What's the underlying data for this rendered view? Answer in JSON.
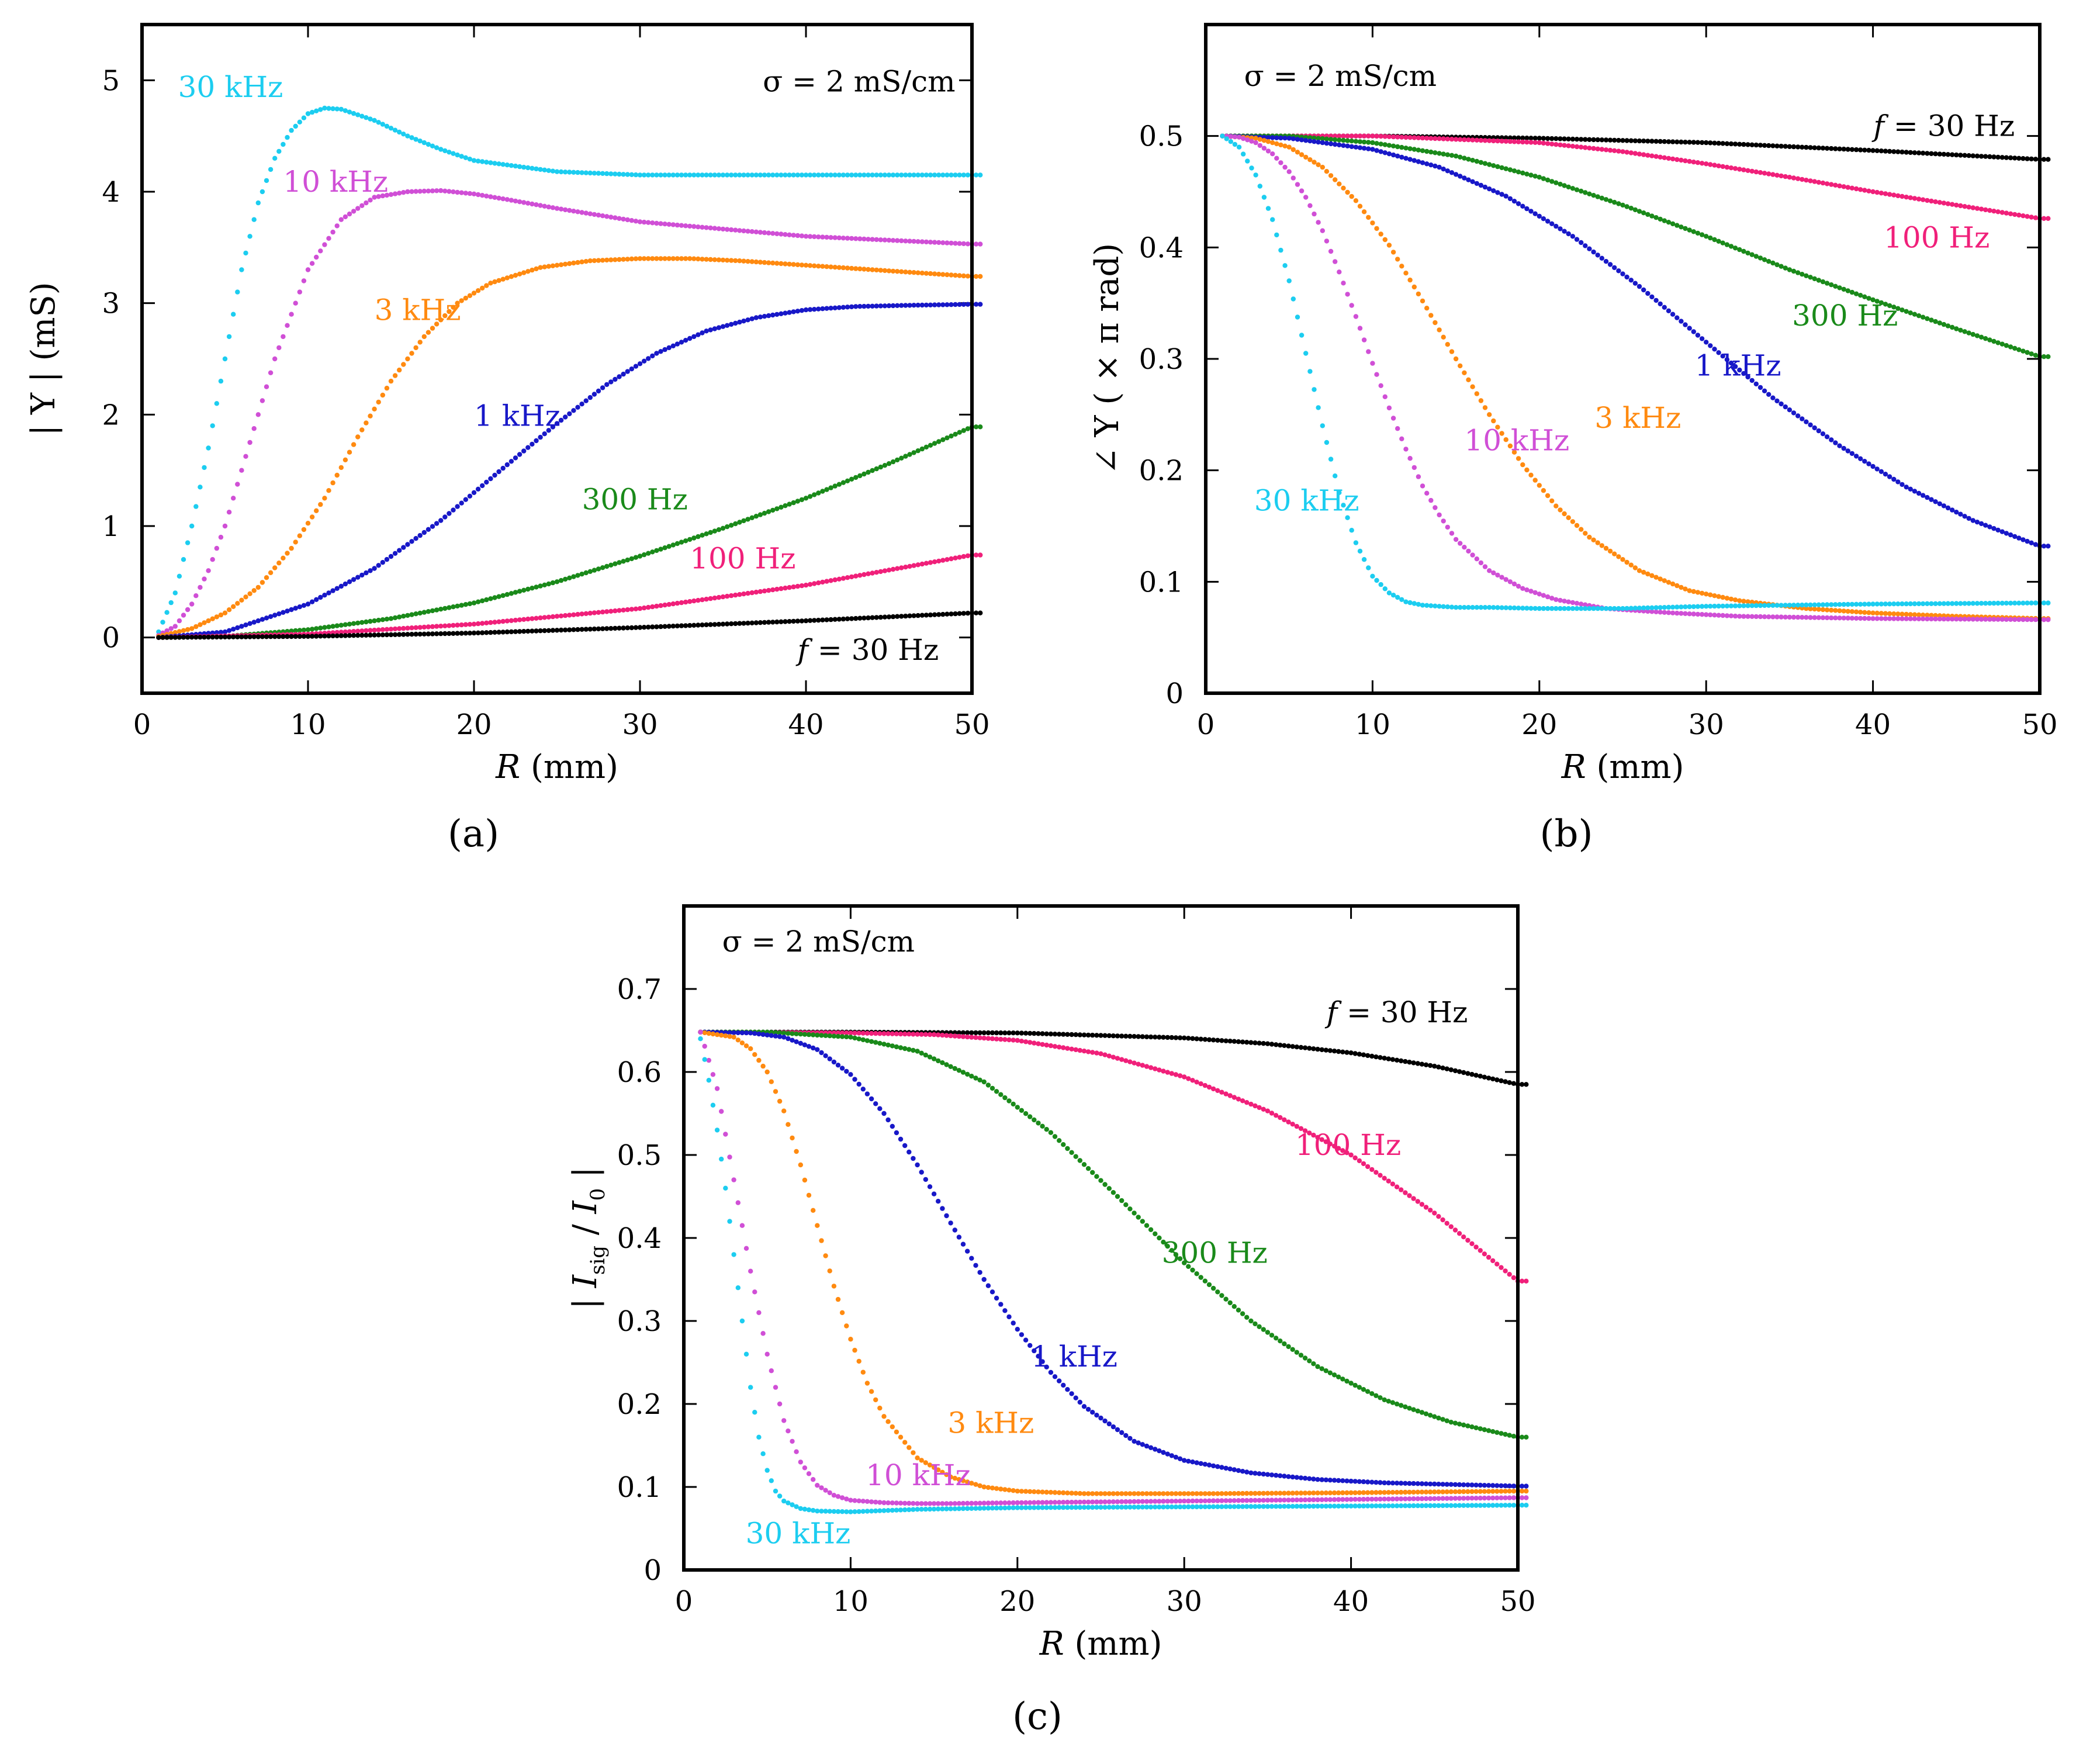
{
  "chart_data": [
    {
      "id": "a",
      "type": "scatter",
      "panel_label": "(a)",
      "xlabel": "R (mm)",
      "ylabel": "| Y | (mS)",
      "xlim": [
        0,
        50
      ],
      "ylim": [
        -0.5,
        5.5
      ],
      "xticks": [
        0,
        10,
        20,
        30,
        40,
        50
      ],
      "yticks": [
        0,
        1,
        2,
        3,
        4,
        5
      ],
      "annotation": "σ = 2 mS/cm",
      "series": [
        {
          "name": "30 kHz",
          "label": "30 kHz",
          "color": "#1ccdf0",
          "x": [
            1,
            2,
            3,
            4,
            5,
            6,
            7,
            8,
            9,
            10,
            11,
            12,
            14,
            16,
            18,
            20,
            25,
            30,
            40,
            50
          ],
          "y": [
            0.05,
            0.4,
            1.0,
            1.7,
            2.5,
            3.3,
            3.9,
            4.3,
            4.55,
            4.7,
            4.75,
            4.74,
            4.64,
            4.5,
            4.38,
            4.28,
            4.18,
            4.15,
            4.15,
            4.15
          ]
        },
        {
          "name": "10 kHz",
          "label": "10 kHz",
          "color": "#d04fd6",
          "x": [
            1,
            2,
            3,
            4,
            5,
            6,
            7,
            8,
            9,
            10,
            12,
            14,
            16,
            18,
            20,
            22,
            25,
            30,
            40,
            50
          ],
          "y": [
            0.02,
            0.1,
            0.3,
            0.6,
            1.0,
            1.5,
            2.0,
            2.5,
            2.9,
            3.3,
            3.75,
            3.95,
            4.0,
            4.01,
            3.98,
            3.93,
            3.85,
            3.73,
            3.6,
            3.53
          ]
        },
        {
          "name": "3 kHz",
          "label": "3 kHz",
          "color": "#ff8a10",
          "x": [
            1,
            3,
            5,
            7,
            9,
            11,
            13,
            15,
            17,
            19,
            21,
            24,
            27,
            30,
            33,
            36,
            40,
            45,
            50
          ],
          "y": [
            0.01,
            0.08,
            0.22,
            0.45,
            0.8,
            1.25,
            1.8,
            2.3,
            2.7,
            3.0,
            3.18,
            3.32,
            3.38,
            3.4,
            3.4,
            3.38,
            3.34,
            3.29,
            3.24
          ]
        },
        {
          "name": "1 kHz",
          "label": "1 kHz",
          "color": "#1818c8",
          "x": [
            1,
            5,
            10,
            14,
            18,
            22,
            25,
            28,
            31,
            34,
            37,
            40,
            43,
            46,
            50
          ],
          "y": [
            0.0,
            0.05,
            0.3,
            0.62,
            1.05,
            1.55,
            1.92,
            2.27,
            2.55,
            2.75,
            2.87,
            2.94,
            2.97,
            2.98,
            2.99
          ]
        },
        {
          "name": "300 Hz",
          "label": "300 Hz",
          "color": "#1a8a1a",
          "x": [
            1,
            5,
            10,
            15,
            20,
            25,
            30,
            35,
            40,
            45,
            50
          ],
          "y": [
            0.0,
            0.01,
            0.07,
            0.17,
            0.31,
            0.5,
            0.73,
            0.98,
            1.25,
            1.56,
            1.89
          ]
        },
        {
          "name": "100 Hz",
          "label": "100 Hz",
          "color": "#f0207a",
          "x": [
            1,
            10,
            20,
            30,
            40,
            50
          ],
          "y": [
            0.0,
            0.03,
            0.12,
            0.26,
            0.47,
            0.74
          ]
        },
        {
          "name": "30 Hz",
          "label": "f = 30 Hz",
          "color": "#000000",
          "x": [
            1,
            10,
            20,
            30,
            40,
            50
          ],
          "y": [
            0.0,
            0.01,
            0.04,
            0.09,
            0.15,
            0.22
          ]
        }
      ]
    },
    {
      "id": "b",
      "type": "scatter",
      "panel_label": "(b)",
      "xlabel": "R (mm)",
      "ylabel": "∠ Y ( × π rad)",
      "xlim": [
        0,
        50
      ],
      "ylim": [
        0,
        0.6
      ],
      "xticks": [
        0,
        10,
        20,
        30,
        40,
        50
      ],
      "yticks": [
        0,
        0.1,
        0.2,
        0.3,
        0.4,
        0.5
      ],
      "annotation": "σ = 2 mS/cm",
      "series": [
        {
          "name": "30 Hz",
          "label": "f = 30 Hz",
          "color": "#000000",
          "x": [
            1,
            10,
            20,
            30,
            40,
            50
          ],
          "y": [
            0.5,
            0.5,
            0.498,
            0.494,
            0.487,
            0.479
          ]
        },
        {
          "name": "100 Hz",
          "label": "100 Hz",
          "color": "#f0207a",
          "x": [
            1,
            10,
            20,
            25,
            30,
            35,
            40,
            45,
            50
          ],
          "y": [
            0.5,
            0.5,
            0.494,
            0.486,
            0.475,
            0.463,
            0.45,
            0.438,
            0.426
          ]
        },
        {
          "name": "300 Hz",
          "label": "300 Hz",
          "color": "#1a8a1a",
          "x": [
            1,
            5,
            10,
            15,
            20,
            25,
            30,
            35,
            40,
            45,
            50
          ],
          "y": [
            0.5,
            0.5,
            0.494,
            0.482,
            0.463,
            0.438,
            0.41,
            0.38,
            0.353,
            0.327,
            0.302
          ]
        },
        {
          "name": "1 kHz",
          "label": "1 kHz",
          "color": "#1818c8",
          "x": [
            1,
            5,
            10,
            14,
            18,
            22,
            26,
            30,
            34,
            38,
            42,
            46,
            50
          ],
          "y": [
            0.5,
            0.498,
            0.488,
            0.472,
            0.446,
            0.41,
            0.365,
            0.315,
            0.265,
            0.222,
            0.185,
            0.155,
            0.132
          ]
        },
        {
          "name": "3 kHz",
          "label": "3 kHz",
          "color": "#ff8a10",
          "x": [
            1,
            3,
            5,
            7,
            9,
            11,
            13,
            15,
            17,
            19,
            21,
            23,
            26,
            29,
            32,
            36,
            40,
            45,
            50
          ],
          "y": [
            0.5,
            0.498,
            0.49,
            0.472,
            0.442,
            0.402,
            0.352,
            0.3,
            0.25,
            0.205,
            0.168,
            0.14,
            0.11,
            0.092,
            0.083,
            0.076,
            0.072,
            0.069,
            0.067
          ]
        },
        {
          "name": "10 kHz",
          "label": "10 kHz",
          "color": "#d04fd6",
          "x": [
            1,
            2,
            3,
            4,
            5,
            6,
            7,
            8,
            9,
            10,
            11,
            12,
            13,
            14,
            15,
            17,
            19,
            21,
            24,
            28,
            32,
            40,
            50
          ],
          "y": [
            0.5,
            0.499,
            0.494,
            0.484,
            0.468,
            0.445,
            0.415,
            0.378,
            0.338,
            0.296,
            0.256,
            0.219,
            0.186,
            0.16,
            0.138,
            0.11,
            0.094,
            0.084,
            0.076,
            0.072,
            0.069,
            0.067,
            0.066
          ]
        },
        {
          "name": "30 kHz",
          "label": "30 kHz",
          "color": "#1ccdf0",
          "x": [
            1,
            2,
            3,
            4,
            5,
            6,
            7,
            8,
            9,
            10,
            11,
            12,
            13,
            15,
            17,
            20,
            25,
            30,
            40,
            50
          ],
          "y": [
            0.5,
            0.49,
            0.465,
            0.425,
            0.37,
            0.305,
            0.24,
            0.18,
            0.135,
            0.105,
            0.09,
            0.082,
            0.079,
            0.077,
            0.077,
            0.076,
            0.076,
            0.078,
            0.08,
            0.081
          ]
        }
      ]
    },
    {
      "id": "c",
      "type": "scatter",
      "panel_label": "(c)",
      "xlabel": "R (mm)",
      "ylabel": "| I_sig / I_0 |",
      "xlim": [
        0,
        50
      ],
      "ylim": [
        0,
        0.8
      ],
      "xticks": [
        0,
        10,
        20,
        30,
        40,
        50
      ],
      "yticks": [
        0,
        0.1,
        0.2,
        0.3,
        0.4,
        0.5,
        0.6,
        0.7
      ],
      "annotation": "σ = 2 mS/cm",
      "series": [
        {
          "name": "30 Hz",
          "label": "f = 30 Hz",
          "color": "#000000",
          "x": [
            1,
            10,
            20,
            30,
            35,
            40,
            45,
            50
          ],
          "y": [
            0.648,
            0.648,
            0.647,
            0.641,
            0.634,
            0.623,
            0.607,
            0.585
          ]
        },
        {
          "name": "100 Hz",
          "label": "100 Hz",
          "color": "#f0207a",
          "x": [
            1,
            10,
            15,
            20,
            25,
            30,
            35,
            40,
            45,
            50
          ],
          "y": [
            0.648,
            0.647,
            0.645,
            0.638,
            0.622,
            0.594,
            0.553,
            0.5,
            0.43,
            0.348
          ]
        },
        {
          "name": "300 Hz",
          "label": "300 Hz",
          "color": "#1a8a1a",
          "x": [
            1,
            5,
            10,
            14,
            18,
            22,
            26,
            30,
            34,
            38,
            42,
            46,
            50
          ],
          "y": [
            0.648,
            0.648,
            0.642,
            0.625,
            0.588,
            0.527,
            0.45,
            0.37,
            0.3,
            0.245,
            0.205,
            0.178,
            0.16
          ]
        },
        {
          "name": "1 kHz",
          "label": "1 kHz",
          "color": "#1818c8",
          "x": [
            1,
            4,
            6,
            8,
            10,
            12,
            14,
            16,
            18,
            20,
            22,
            24,
            27,
            30,
            34,
            38,
            42,
            46,
            50
          ],
          "y": [
            0.648,
            0.647,
            0.642,
            0.627,
            0.597,
            0.55,
            0.488,
            0.418,
            0.35,
            0.29,
            0.238,
            0.197,
            0.155,
            0.132,
            0.117,
            0.109,
            0.105,
            0.103,
            0.101
          ]
        },
        {
          "name": "3 kHz",
          "label": "3 kHz",
          "color": "#ff8a10",
          "x": [
            1,
            3,
            4,
            5,
            6,
            7,
            8,
            9,
            10,
            11,
            12,
            14,
            16,
            18,
            20,
            24,
            28,
            32,
            40,
            50
          ],
          "y": [
            0.648,
            0.642,
            0.628,
            0.6,
            0.553,
            0.488,
            0.415,
            0.342,
            0.278,
            0.225,
            0.185,
            0.135,
            0.112,
            0.1,
            0.095,
            0.092,
            0.092,
            0.092,
            0.093,
            0.095
          ]
        },
        {
          "name": "10 kHz",
          "label": "10 kHz",
          "color": "#d04fd6",
          "x": [
            1,
            2,
            3,
            4,
            5,
            6,
            7,
            8,
            9,
            10,
            12,
            14,
            16,
            20,
            30,
            40,
            50
          ],
          "y": [
            0.648,
            0.58,
            0.47,
            0.36,
            0.26,
            0.18,
            0.13,
            0.102,
            0.09,
            0.084,
            0.081,
            0.08,
            0.08,
            0.081,
            0.083,
            0.085,
            0.087
          ]
        },
        {
          "name": "30 kHz",
          "label": "30 kHz",
          "color": "#1ccdf0",
          "x": [
            1,
            1.5,
            2,
            2.5,
            3,
            3.5,
            4,
            4.5,
            5,
            5.5,
            6,
            7,
            8,
            10,
            14,
            20,
            30,
            40,
            50
          ],
          "y": [
            0.64,
            0.59,
            0.53,
            0.46,
            0.38,
            0.3,
            0.22,
            0.16,
            0.12,
            0.095,
            0.083,
            0.074,
            0.071,
            0.07,
            0.073,
            0.075,
            0.076,
            0.077,
            0.078
          ]
        }
      ]
    }
  ]
}
